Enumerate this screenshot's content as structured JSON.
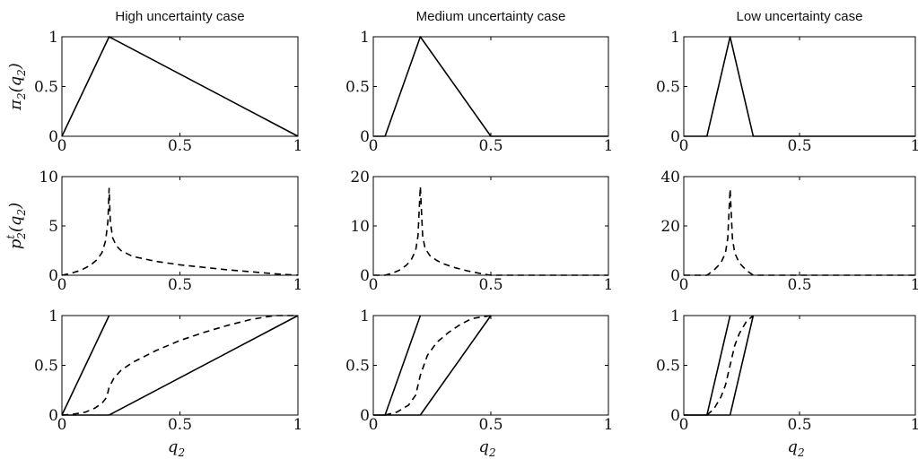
{
  "chart_data": [
    {
      "type": "line",
      "panel": "high-pi",
      "title": "High uncertainty case",
      "ylabel_base": "π",
      "ylabel_sub": "2",
      "ylabel_arg": "(q",
      "ylabel_arg_sub": "2",
      "ylabel_close": ")",
      "xlim": [
        0,
        1
      ],
      "ylim": [
        0,
        1
      ],
      "xticks": [
        "0",
        "0.5",
        "1"
      ],
      "yticks": [
        "0",
        "0.5",
        "1"
      ],
      "series": [
        {
          "style": "solid",
          "x": [
            0,
            0.2,
            1
          ],
          "y": [
            0,
            1,
            0
          ]
        }
      ]
    },
    {
      "type": "line",
      "panel": "medium-pi",
      "title": "Medium uncertainty case",
      "xlim": [
        0,
        1
      ],
      "ylim": [
        0,
        1
      ],
      "xticks": [
        "0",
        "0.5",
        "1"
      ],
      "yticks": [
        "0",
        "0.5",
        "1"
      ],
      "series": [
        {
          "style": "solid",
          "x": [
            0,
            0.05,
            0.2,
            0.5,
            1
          ],
          "y": [
            0,
            0,
            1,
            0,
            0
          ]
        }
      ]
    },
    {
      "type": "line",
      "panel": "low-pi",
      "title": "Low uncertainty case",
      "xlim": [
        0,
        1
      ],
      "ylim": [
        0,
        1
      ],
      "xticks": [
        "0",
        "0.5",
        "1"
      ],
      "yticks": [
        "0",
        "0.5",
        "1"
      ],
      "series": [
        {
          "style": "solid",
          "x": [
            0,
            0.1,
            0.2,
            0.3,
            1
          ],
          "y": [
            0,
            0,
            1,
            0,
            0
          ]
        }
      ]
    },
    {
      "type": "line",
      "panel": "high-pt",
      "ylabel_base": "p",
      "ylabel_sub": "2",
      "ylabel_sup": "t",
      "ylabel_arg": "(q",
      "ylabel_arg_sub": "2",
      "ylabel_close": ")",
      "xlim": [
        0,
        1
      ],
      "ylim": [
        0,
        10
      ],
      "xticks": [
        "0",
        "0.5",
        "1"
      ],
      "yticks": [
        "0",
        "5",
        "10"
      ],
      "series": [
        {
          "style": "dashed",
          "x": [
            0,
            0.04,
            0.08,
            0.12,
            0.15,
            0.17,
            0.185,
            0.195,
            0.2,
            0.205,
            0.215,
            0.23,
            0.25,
            0.3,
            0.4,
            0.5,
            0.6,
            0.7,
            0.8,
            0.9,
            1
          ],
          "y": [
            0,
            0.2,
            0.5,
            1.0,
            1.6,
            2.3,
            3.5,
            5.5,
            8.8,
            5.5,
            3.8,
            3.0,
            2.5,
            1.9,
            1.4,
            1.05,
            0.8,
            0.55,
            0.35,
            0.15,
            0
          ]
        }
      ]
    },
    {
      "type": "line",
      "panel": "medium-pt",
      "xlim": [
        0,
        1
      ],
      "ylim": [
        0,
        20
      ],
      "xticks": [
        "0",
        "0.5",
        "1"
      ],
      "yticks": [
        "0",
        "10",
        "20"
      ],
      "series": [
        {
          "style": "dashed",
          "x": [
            0,
            0.05,
            0.08,
            0.11,
            0.14,
            0.16,
            0.18,
            0.19,
            0.2,
            0.21,
            0.22,
            0.24,
            0.27,
            0.3,
            0.35,
            0.4,
            0.45,
            0.5,
            1
          ],
          "y": [
            0,
            0,
            0.4,
            1.0,
            2.0,
            3.0,
            5.0,
            8.0,
            18.0,
            8.0,
            5.5,
            4.0,
            3.0,
            2.3,
            1.5,
            0.9,
            0.4,
            0,
            0
          ]
        }
      ]
    },
    {
      "type": "line",
      "panel": "low-pt",
      "xlim": [
        0,
        1
      ],
      "ylim": [
        0,
        40
      ],
      "xticks": [
        "0",
        "0.5",
        "1"
      ],
      "yticks": [
        "0",
        "20",
        "40"
      ],
      "series": [
        {
          "style": "dashed",
          "x": [
            0,
            0.1,
            0.13,
            0.16,
            0.18,
            0.19,
            0.2,
            0.21,
            0.22,
            0.24,
            0.27,
            0.3,
            1
          ],
          "y": [
            0,
            0,
            2.0,
            5.0,
            9.0,
            15.0,
            35.0,
            15.0,
            9.0,
            5.0,
            2.0,
            0,
            0
          ]
        }
      ]
    },
    {
      "type": "line",
      "panel": "high-cdf",
      "xlabel_base": "q",
      "xlabel_sub": "2",
      "xlim": [
        0,
        1
      ],
      "ylim": [
        0,
        1
      ],
      "xticks": [
        "0",
        "0.5",
        "1"
      ],
      "yticks": [
        "0",
        "0.5",
        "1"
      ],
      "series": [
        {
          "style": "solid",
          "x": [
            0,
            0.2
          ],
          "y": [
            0,
            1
          ]
        },
        {
          "style": "solid",
          "x": [
            0,
            0.2,
            1
          ],
          "y": [
            0,
            0,
            1
          ]
        },
        {
          "style": "dashed",
          "x": [
            0,
            0.05,
            0.1,
            0.14,
            0.17,
            0.19,
            0.2,
            0.22,
            0.25,
            0.3,
            0.4,
            0.5,
            0.6,
            0.7,
            0.8,
            0.9,
            1
          ],
          "y": [
            0,
            0.01,
            0.03,
            0.07,
            0.12,
            0.18,
            0.28,
            0.37,
            0.45,
            0.53,
            0.65,
            0.75,
            0.83,
            0.9,
            0.96,
            1.0,
            1.0
          ]
        }
      ]
    },
    {
      "type": "line",
      "panel": "medium-cdf",
      "xlabel_base": "q",
      "xlabel_sub": "2",
      "xlim": [
        0,
        1
      ],
      "ylim": [
        0,
        1
      ],
      "xticks": [
        "0",
        "0.5",
        "1"
      ],
      "yticks": [
        "0",
        "0.5",
        "1"
      ],
      "series": [
        {
          "style": "solid",
          "x": [
            0,
            0.05,
            0.2
          ],
          "y": [
            0,
            0,
            1
          ]
        },
        {
          "style": "solid",
          "x": [
            0,
            0.2,
            0.5
          ],
          "y": [
            0,
            0,
            1
          ]
        },
        {
          "style": "dashed",
          "x": [
            0.05,
            0.1,
            0.15,
            0.18,
            0.2,
            0.23,
            0.27,
            0.32,
            0.37,
            0.42,
            0.5
          ],
          "y": [
            0,
            0.03,
            0.1,
            0.2,
            0.4,
            0.6,
            0.73,
            0.83,
            0.91,
            0.97,
            1.0
          ]
        }
      ]
    },
    {
      "type": "line",
      "panel": "low-cdf",
      "xlabel_base": "q",
      "xlabel_sub": "2",
      "xlim": [
        0,
        1
      ],
      "ylim": [
        0,
        1
      ],
      "xticks": [
        "0",
        "0.5",
        "1"
      ],
      "yticks": [
        "0",
        "0.5",
        "1"
      ],
      "series": [
        {
          "style": "solid",
          "x": [
            0,
            0.1,
            0.2
          ],
          "y": [
            0,
            0,
            1
          ]
        },
        {
          "style": "solid",
          "x": [
            0,
            0.2,
            0.3
          ],
          "y": [
            0,
            0,
            1
          ]
        },
        {
          "style": "dashed",
          "x": [
            0.1,
            0.13,
            0.16,
            0.18,
            0.2,
            0.22,
            0.24,
            0.27,
            0.3
          ],
          "y": [
            0,
            0.06,
            0.18,
            0.3,
            0.5,
            0.7,
            0.82,
            0.94,
            1.0
          ]
        }
      ]
    }
  ]
}
